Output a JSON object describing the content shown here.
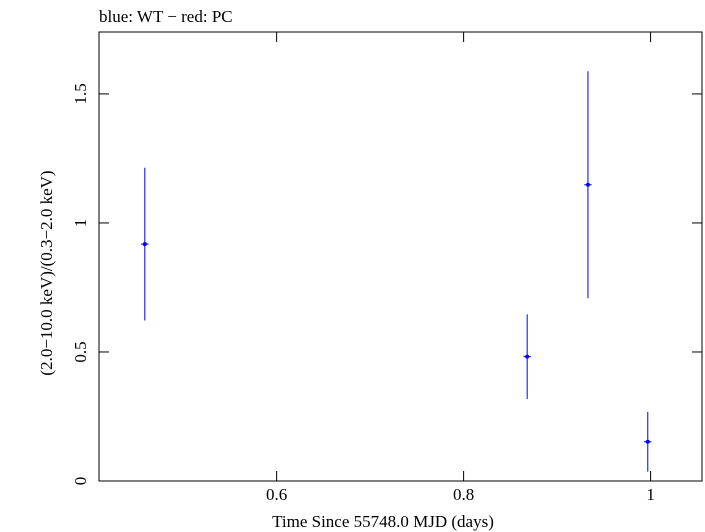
{
  "chart_data": {
    "type": "scatter",
    "title": "blue: WT − red: PC",
    "xlabel": "Time Since 55748.0 MJD (days)",
    "ylabel": "(2.0−10.0 keV)/(0.3−2.0 keV)",
    "xlim": [
      0.41,
      1.055
    ],
    "ylim": [
      0,
      1.74
    ],
    "x_ticks": [
      0.6,
      0.8,
      1
    ],
    "x_tick_labels": [
      "0.6",
      "0.8",
      "1"
    ],
    "y_ticks": [
      0,
      0.5,
      1,
      1.5
    ],
    "y_tick_labels": [
      "0",
      "0.5",
      "1",
      "1.5"
    ],
    "grid": false,
    "series": [
      {
        "name": "WT",
        "color": "#0000ff",
        "points": [
          {
            "x": 0.459,
            "y": 0.918,
            "y_low": 0.622,
            "y_high": 1.214,
            "x_err": 0.004
          },
          {
            "x": 0.868,
            "y": 0.482,
            "y_low": 0.318,
            "y_high": 0.646,
            "x_err": 0.004
          },
          {
            "x": 0.933,
            "y": 1.148,
            "y_low": 0.708,
            "y_high": 1.588,
            "x_err": 0.004
          },
          {
            "x": 0.997,
            "y": 0.152,
            "y_low": 0.036,
            "y_high": 0.268,
            "x_err": 0.004
          }
        ]
      }
    ]
  }
}
